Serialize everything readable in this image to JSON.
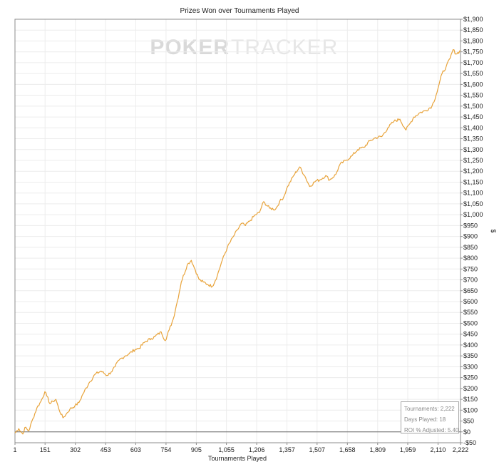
{
  "watermark": {
    "part1": "POKER",
    "part2": "TRACKER"
  },
  "stats": {
    "tournaments": "Tournaments: 2,222",
    "days_played": "Days Played: 18",
    "roi": "ROI % Adjusted: 5.40"
  },
  "colors": {
    "line": "#E8A33A",
    "grid": "#ECECEC",
    "zero_line": "#666666"
  },
  "chart_data": {
    "type": "line",
    "title": "Prizes Won over Tournaments Played",
    "xlabel": "Tournaments Played",
    "ylabel": "$",
    "xlim": [
      1,
      2222
    ],
    "ylim": [
      -50,
      1900
    ],
    "x_ticks": [
      1,
      151,
      302,
      453,
      603,
      754,
      905,
      1055,
      1206,
      1357,
      1507,
      1658,
      1809,
      1959,
      2110,
      2222
    ],
    "x_tick_labels": [
      "1",
      "151",
      "302",
      "453",
      "603",
      "754",
      "905",
      "1,055",
      "1,206",
      "1,357",
      "1,507",
      "1,658",
      "1,809",
      "1,959",
      "2,110",
      "2,222"
    ],
    "y_ticks": [
      -50,
      0,
      50,
      100,
      150,
      200,
      250,
      300,
      350,
      400,
      450,
      500,
      550,
      600,
      650,
      700,
      750,
      800,
      850,
      900,
      950,
      1000,
      1050,
      1100,
      1150,
      1200,
      1250,
      1300,
      1350,
      1400,
      1450,
      1500,
      1550,
      1600,
      1650,
      1700,
      1750,
      1800,
      1850,
      1900
    ],
    "y_tick_labels": [
      "-$50",
      "$0",
      "$50",
      "$100",
      "$150",
      "$200",
      "$250",
      "$300",
      "$350",
      "$400",
      "$450",
      "$500",
      "$550",
      "$600",
      "$650",
      "$700",
      "$750",
      "$800",
      "$850",
      "$900",
      "$950",
      "$1,000",
      "$1,050",
      "$1,100",
      "$1,150",
      "$1,200",
      "$1,250",
      "$1,300",
      "$1,350",
      "$1,400",
      "$1,450",
      "$1,500",
      "$1,550",
      "$1,600",
      "$1,650",
      "$1,700",
      "$1,750",
      "$1,800",
      "$1,850",
      "$1,900"
    ],
    "grid": true,
    "series": [
      {
        "x": [
          1,
          20,
          40,
          50,
          70,
          90,
          110,
          130,
          150,
          160,
          175,
          190,
          205,
          220,
          240,
          255,
          275,
          300,
          320,
          340,
          370,
          400,
          430,
          460,
          480,
          500,
          520,
          550,
          570,
          600,
          620,
          650,
          680,
          700,
          730,
          750,
          770,
          790,
          810,
          830,
          860,
          880,
          900,
          920,
          940,
          960,
          985,
          1010,
          1030,
          1060,
          1090,
          1110,
          1130,
          1150,
          1170,
          1200,
          1220,
          1240,
          1270,
          1300,
          1320,
          1340,
          1360,
          1390,
          1420,
          1445,
          1470,
          1500,
          1520,
          1550,
          1570,
          1600,
          1620,
          1650,
          1680,
          1710,
          1740,
          1770,
          1800,
          1830,
          1860,
          1890,
          1920,
          1950,
          1970,
          1990,
          2020,
          2050,
          2080,
          2100,
          2115,
          2130,
          2150,
          2170,
          2185,
          2200,
          2222
        ],
        "y": [
          -5,
          15,
          -10,
          20,
          5,
          60,
          110,
          140,
          185,
          165,
          130,
          140,
          150,
          105,
          65,
          80,
          105,
          120,
          135,
          175,
          225,
          265,
          280,
          260,
          275,
          300,
          330,
          350,
          360,
          380,
          385,
          415,
          430,
          440,
          460,
          420,
          470,
          520,
          600,
          690,
          770,
          790,
          745,
          700,
          690,
          680,
          670,
          720,
          780,
          850,
          900,
          930,
          960,
          950,
          970,
          1000,
          1010,
          1060,
          1030,
          1025,
          1060,
          1080,
          1130,
          1180,
          1220,
          1180,
          1130,
          1155,
          1160,
          1180,
          1160,
          1185,
          1230,
          1250,
          1270,
          1300,
          1310,
          1340,
          1355,
          1360,
          1400,
          1430,
          1440,
          1390,
          1420,
          1450,
          1470,
          1480,
          1500,
          1550,
          1600,
          1650,
          1680,
          1720,
          1760,
          1740,
          1755
        ]
      }
    ]
  }
}
